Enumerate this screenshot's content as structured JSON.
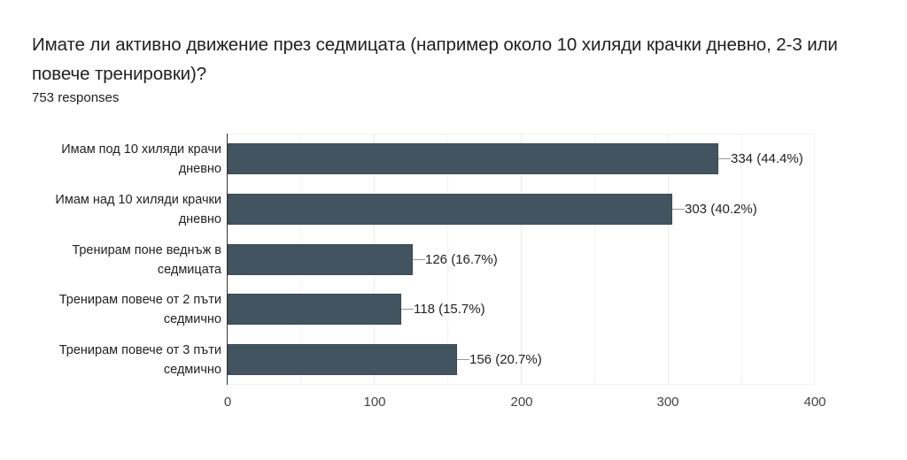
{
  "header": {
    "question": "Имате ли активно движение през седмицата (например около 10 хиляди крачки дневно, 2-3 или повече тренировки)?",
    "responses": "753 responses"
  },
  "colors": {
    "bar": "#435461",
    "grid": "#ebebeb",
    "axis": "#333333"
  },
  "chart_data": {
    "type": "bar",
    "orientation": "horizontal",
    "title": "Имате ли активно движение през седмицата (например около 10 хиляди крачки дневно, 2-3 или повече тренировки)?",
    "subtitle": "753 responses",
    "categories": [
      "Имам под 10 хиляди крачи дневно",
      "Имам над 10 хиляди крачки дневно",
      "Тренирам поне веднъж в седмицата",
      "Тренирам повече от 2 пъти седмично",
      "Тренирам повече от 3 пъти седмично"
    ],
    "values": [
      334,
      303,
      126,
      118,
      156
    ],
    "percentages": [
      "44.4%",
      "40.2%",
      "16.7%",
      "15.7%",
      "20.7%"
    ],
    "labels": [
      "334 (44.4%)",
      "303 (40.2%)",
      "126 (16.7%)",
      "118 (15.7%)",
      "156 (20.7%)"
    ],
    "xlabel": "",
    "ylabel": "",
    "xlim": [
      0,
      400
    ],
    "xticks": [
      "0",
      "100",
      "200",
      "300",
      "400"
    ],
    "grid": true,
    "legend": "none"
  },
  "categories_lines": [
    [
      "Имам под 10 хиляди крачи",
      "дневно"
    ],
    [
      "Имам над 10 хиляди крачки",
      "дневно"
    ],
    [
      "Тренирам поне веднъж в",
      "седмицата"
    ],
    [
      "Тренирам повече от 2 пъти",
      "седмично"
    ],
    [
      "Тренирам повече от 3 пъти",
      "седмично"
    ]
  ]
}
